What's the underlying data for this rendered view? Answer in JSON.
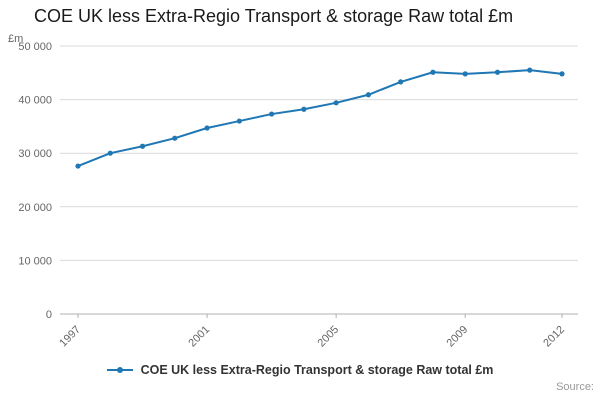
{
  "page": {
    "title": "COE UK less Extra-Regio Transport & storage Raw total £m",
    "source_label": "Source:"
  },
  "legend": {
    "label": "COE UK less Extra-Regio Transport & storage Raw total £m"
  },
  "chart_data": {
    "type": "line",
    "title": "COE UK less Extra-Regio Transport & storage Raw total £m",
    "xlabel": "",
    "ylabel": "£m",
    "x": [
      1997,
      1998,
      1999,
      2000,
      2001,
      2002,
      2003,
      2004,
      2005,
      2006,
      2007,
      2008,
      2009,
      2010,
      2011,
      2012
    ],
    "values": [
      27600,
      30000,
      31300,
      32800,
      34700,
      36000,
      37300,
      38200,
      39400,
      40900,
      43300,
      45100,
      44800,
      45100,
      45500,
      44800
    ],
    "ylim": [
      0,
      50000
    ],
    "grid": true,
    "legend_position": "bottom",
    "y_ticks": [
      {
        "value": 0,
        "label": "0"
      },
      {
        "value": 10000,
        "label": "10 000"
      },
      {
        "value": 20000,
        "label": "20 000"
      },
      {
        "value": 30000,
        "label": "30 000"
      },
      {
        "value": 40000,
        "label": "40 000"
      },
      {
        "value": 50000,
        "label": "50 000"
      }
    ],
    "x_ticks": [
      {
        "value": 1997,
        "label": "1997"
      },
      {
        "value": 2001,
        "label": "2001"
      },
      {
        "value": 2005,
        "label": "2005"
      },
      {
        "value": 2009,
        "label": "2009"
      },
      {
        "value": 2012,
        "label": "2012"
      }
    ],
    "colors": {
      "line": "#1f77b4",
      "grid": "#d9d9d9",
      "axis": "#b0b0b0",
      "tick_text": "#666666",
      "title_text": "#1a1a1a"
    }
  }
}
